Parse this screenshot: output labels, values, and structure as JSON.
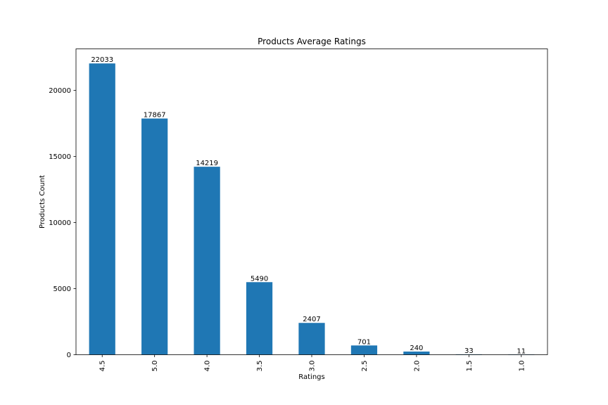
{
  "chart_data": {
    "type": "bar",
    "title": "Products Average Ratings",
    "xlabel": "Ratings",
    "ylabel": "Products Count",
    "categories": [
      "4.5",
      "5.0",
      "4.0",
      "3.5",
      "3.0",
      "2.5",
      "2.0",
      "1.5",
      "1.0"
    ],
    "values": [
      22033,
      17867,
      14219,
      5490,
      2407,
      701,
      240,
      33,
      11
    ],
    "data_labels": [
      "22033",
      "17867",
      "14219",
      "5490",
      "2407",
      "701",
      "240",
      "33",
      "11"
    ],
    "ylim": [
      0,
      23135
    ],
    "yticks": [
      0,
      5000,
      10000,
      15000,
      20000
    ],
    "ytick_labels": [
      "0",
      "5000",
      "10000",
      "15000",
      "20000"
    ],
    "bar_color": "#1f77b4",
    "grid": false,
    "legend": "none"
  }
}
